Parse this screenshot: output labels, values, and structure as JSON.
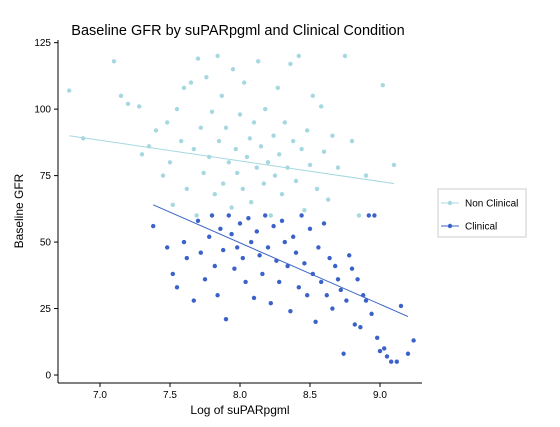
{
  "chart_data": {
    "type": "scatter",
    "title": "Baseline GFR by suPARpgml and Clinical Condition",
    "xlabel": "Log of suPARpgml",
    "ylabel": "Baseline GFR",
    "xlim": [
      6.7,
      9.3
    ],
    "ylim": [
      -3,
      126
    ],
    "x_ticks": [
      7.0,
      7.5,
      8.0,
      8.5,
      9.0
    ],
    "x_tick_labels": [
      "7.0",
      "7.5",
      "8.0",
      "8.5",
      "9.0"
    ],
    "y_ticks": [
      0,
      25,
      50,
      75,
      100,
      125
    ],
    "y_tick_labels": [
      "0",
      "25",
      "50",
      "75",
      "100",
      "125"
    ],
    "grid": false,
    "legend_position": "right",
    "series": [
      {
        "name": "Non Clinical",
        "color": "#a6d8e0",
        "fit_line": [
          [
            6.78,
            90.0
          ],
          [
            9.1,
            72.0
          ]
        ],
        "points": [
          [
            6.78,
            107
          ],
          [
            6.88,
            89
          ],
          [
            7.1,
            118
          ],
          [
            7.15,
            105
          ],
          [
            7.2,
            102
          ],
          [
            7.28,
            101
          ],
          [
            7.3,
            83
          ],
          [
            7.35,
            86
          ],
          [
            7.4,
            92
          ],
          [
            7.45,
            75
          ],
          [
            7.48,
            95
          ],
          [
            7.5,
            80
          ],
          [
            7.52,
            64
          ],
          [
            7.55,
            100
          ],
          [
            7.58,
            88
          ],
          [
            7.6,
            108
          ],
          [
            7.62,
            70
          ],
          [
            7.65,
            110
          ],
          [
            7.67,
            85
          ],
          [
            7.69,
            60
          ],
          [
            7.7,
            119
          ],
          [
            7.72,
            93
          ],
          [
            7.74,
            76
          ],
          [
            7.76,
            112
          ],
          [
            7.78,
            82
          ],
          [
            7.8,
            99
          ],
          [
            7.82,
            68
          ],
          [
            7.84,
            120
          ],
          [
            7.85,
            88
          ],
          [
            7.87,
            105
          ],
          [
            7.88,
            72
          ],
          [
            7.9,
            93
          ],
          [
            7.92,
            80
          ],
          [
            7.94,
            63
          ],
          [
            7.95,
            115
          ],
          [
            7.97,
            85
          ],
          [
            7.98,
            76
          ],
          [
            8.0,
            98
          ],
          [
            8.02,
            70
          ],
          [
            8.03,
            110
          ],
          [
            8.05,
            82
          ],
          [
            8.07,
            89
          ],
          [
            8.08,
            65
          ],
          [
            8.1,
            95
          ],
          [
            8.12,
            78
          ],
          [
            8.13,
            118
          ],
          [
            8.15,
            86
          ],
          [
            8.17,
            72
          ],
          [
            8.18,
            100
          ],
          [
            8.2,
            80
          ],
          [
            8.22,
            60
          ],
          [
            8.24,
            90
          ],
          [
            8.25,
            75
          ],
          [
            8.27,
            108
          ],
          [
            8.28,
            83
          ],
          [
            8.3,
            68
          ],
          [
            8.32,
            95
          ],
          [
            8.34,
            78
          ],
          [
            8.36,
            117
          ],
          [
            8.38,
            88
          ],
          [
            8.4,
            73
          ],
          [
            8.42,
            120
          ],
          [
            8.44,
            85
          ],
          [
            8.46,
            62
          ],
          [
            8.48,
            92
          ],
          [
            8.5,
            79
          ],
          [
            8.52,
            105
          ],
          [
            8.55,
            70
          ],
          [
            8.58,
            101
          ],
          [
            8.6,
            84
          ],
          [
            8.63,
            66
          ],
          [
            8.66,
            90
          ],
          [
            8.7,
            78
          ],
          [
            8.75,
            120
          ],
          [
            8.8,
            88
          ],
          [
            8.85,
            60
          ],
          [
            8.9,
            75
          ],
          [
            9.02,
            109
          ],
          [
            9.1,
            79
          ]
        ]
      },
      {
        "name": "Clinical",
        "color": "#3a62c8",
        "fit_line": [
          [
            7.38,
            64.0
          ],
          [
            9.2,
            22.0
          ]
        ],
        "points": [
          [
            7.38,
            56
          ],
          [
            7.48,
            48
          ],
          [
            7.52,
            38
          ],
          [
            7.55,
            33
          ],
          [
            7.6,
            50
          ],
          [
            7.62,
            44
          ],
          [
            7.67,
            28
          ],
          [
            7.7,
            58
          ],
          [
            7.72,
            46
          ],
          [
            7.75,
            36
          ],
          [
            7.78,
            52
          ],
          [
            7.8,
            60
          ],
          [
            7.82,
            41
          ],
          [
            7.84,
            30
          ],
          [
            7.86,
            55
          ],
          [
            7.88,
            47
          ],
          [
            7.9,
            21
          ],
          [
            7.92,
            60
          ],
          [
            7.94,
            53
          ],
          [
            7.96,
            40
          ],
          [
            7.98,
            48
          ],
          [
            8.0,
            57
          ],
          [
            8.02,
            44
          ],
          [
            8.04,
            35
          ],
          [
            8.06,
            59
          ],
          [
            8.08,
            50
          ],
          [
            8.1,
            29
          ],
          [
            8.12,
            54
          ],
          [
            8.14,
            45
          ],
          [
            8.16,
            38
          ],
          [
            8.18,
            60
          ],
          [
            8.2,
            48
          ],
          [
            8.22,
            27
          ],
          [
            8.24,
            56
          ],
          [
            8.26,
            43
          ],
          [
            8.28,
            35
          ],
          [
            8.3,
            58
          ],
          [
            8.32,
            50
          ],
          [
            8.34,
            41
          ],
          [
            8.36,
            24
          ],
          [
            8.38,
            52
          ],
          [
            8.4,
            46
          ],
          [
            8.42,
            33
          ],
          [
            8.44,
            60
          ],
          [
            8.46,
            42
          ],
          [
            8.48,
            30
          ],
          [
            8.5,
            55
          ],
          [
            8.52,
            38
          ],
          [
            8.54,
            20
          ],
          [
            8.56,
            48
          ],
          [
            8.58,
            35
          ],
          [
            8.6,
            57
          ],
          [
            8.62,
            30
          ],
          [
            8.64,
            44
          ],
          [
            8.66,
            25
          ],
          [
            8.68,
            41
          ],
          [
            8.7,
            36
          ],
          [
            8.72,
            32
          ],
          [
            8.74,
            8
          ],
          [
            8.76,
            28
          ],
          [
            8.78,
            45
          ],
          [
            8.8,
            40
          ],
          [
            8.82,
            19
          ],
          [
            8.84,
            36
          ],
          [
            8.86,
            18
          ],
          [
            8.88,
            30
          ],
          [
            8.9,
            28
          ],
          [
            8.92,
            60
          ],
          [
            8.94,
            23
          ],
          [
            8.96,
            60
          ],
          [
            8.98,
            14
          ],
          [
            9.0,
            9
          ],
          [
            9.03,
            10
          ],
          [
            9.05,
            7
          ],
          [
            9.08,
            5
          ],
          [
            9.12,
            5
          ],
          [
            9.15,
            26
          ],
          [
            9.2,
            8
          ],
          [
            9.24,
            13
          ]
        ]
      }
    ]
  }
}
